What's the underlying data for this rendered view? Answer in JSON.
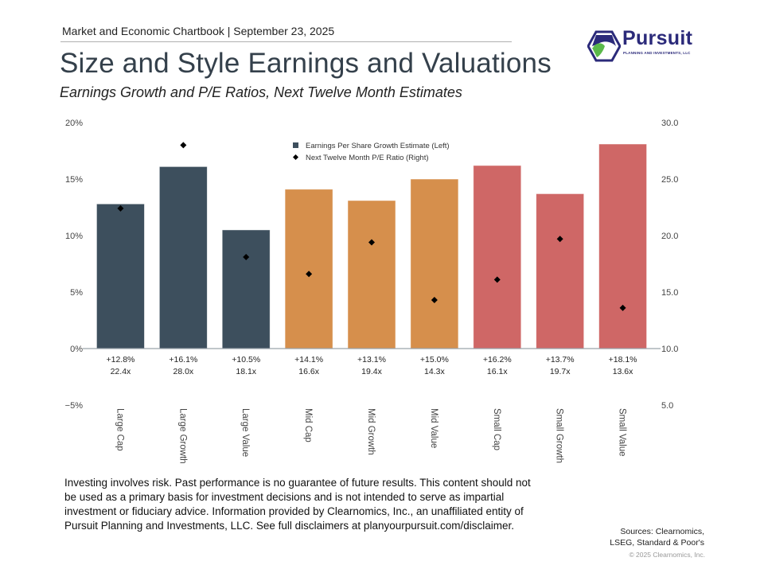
{
  "header": {
    "chartbook_line": "Market and Economic Chartbook | September 23, 2025",
    "title": "Size and Style Earnings and Valuations",
    "subtitle": "Earnings Growth and P/E Ratios, Next Twelve Month Estimates"
  },
  "logo": {
    "name": "Pursuit",
    "tagline": "PLANNING AND INVESTMENTS, LLC",
    "icon": "hexagon-logo-icon",
    "colors": {
      "navy": "#2b2a7a",
      "green": "#5bb94a"
    }
  },
  "chart_data": {
    "type": "bar",
    "title": "Size and Style Earnings and Valuations",
    "subtitle": "Earnings Growth and P/E Ratios, Next Twelve Month Estimates",
    "categories": [
      "Large Cap",
      "Large Growth",
      "Large Value",
      "Mid Cap",
      "Mid Growth",
      "Mid Value",
      "Small Cap",
      "Small Growth",
      "Small Value"
    ],
    "series": [
      {
        "name": "Earnings Per Share Growth Estimate (Left)",
        "axis": "left",
        "type": "bar",
        "values": [
          12.8,
          16.1,
          10.5,
          14.1,
          13.1,
          15.0,
          16.2,
          13.7,
          18.1
        ],
        "labels": [
          "+12.8%",
          "+16.1%",
          "+10.5%",
          "+14.1%",
          "+13.1%",
          "+15.0%",
          "+16.2%",
          "+13.7%",
          "+18.1%"
        ],
        "colors": [
          "#3d4f5d",
          "#3d4f5d",
          "#3d4f5d",
          "#d68f4c",
          "#d68f4c",
          "#d68f4c",
          "#cf6766",
          "#cf6766",
          "#cf6766"
        ]
      },
      {
        "name": "Next Twelve Month P/E Ratio (Right)",
        "axis": "right",
        "type": "scatter",
        "marker": "diamond",
        "values": [
          22.4,
          28.0,
          18.1,
          16.6,
          19.4,
          14.3,
          16.1,
          19.7,
          13.6
        ],
        "labels": [
          "22.4x",
          "28.0x",
          "18.1x",
          "16.6x",
          "19.4x",
          "14.3x",
          "16.1x",
          "19.7x",
          "13.6x"
        ],
        "color": "#000000"
      }
    ],
    "left_axis": {
      "ylim": [
        -5,
        20
      ],
      "ticks": [
        20,
        15,
        10,
        5,
        0,
        -5
      ],
      "tick_labels": [
        "20%",
        "15%",
        "10%",
        "5%",
        "0%",
        "−5%"
      ]
    },
    "right_axis": {
      "ylim": [
        5,
        30
      ],
      "ticks": [
        30,
        25,
        20,
        15,
        10,
        5
      ],
      "tick_labels": [
        "30.0",
        "25.0",
        "20.0",
        "15.0",
        "10.0",
        "5.0"
      ]
    },
    "legend": {
      "placement": "top-center",
      "entries": [
        {
          "label": "Earnings Per Share Growth Estimate (Left)",
          "marker": "square",
          "color": "#3d4f5d"
        },
        {
          "label": "Next Twelve Month P/E Ratio (Right)",
          "marker": "diamond",
          "color": "#000000"
        }
      ]
    },
    "grid": false,
    "xlabel": "",
    "ylabel": ""
  },
  "footer": {
    "disclaimer": "Investing involves risk. Past performance is no guarantee of future results. This content should not be used as a primary basis for investment decisions and is not intended to serve as impartial investment or fiduciary advice. Information provided by Clearnomics, Inc., an unaffiliated entity of Pursuit Planning and Investments, LLC. See full disclaimers at planyourpursuit.com/disclaimer.",
    "sources_line1": "Sources: Clearnomics,",
    "sources_line2": "LSEG, Standard & Poor's",
    "copyright": "© 2025 Clearnomics, Inc."
  }
}
